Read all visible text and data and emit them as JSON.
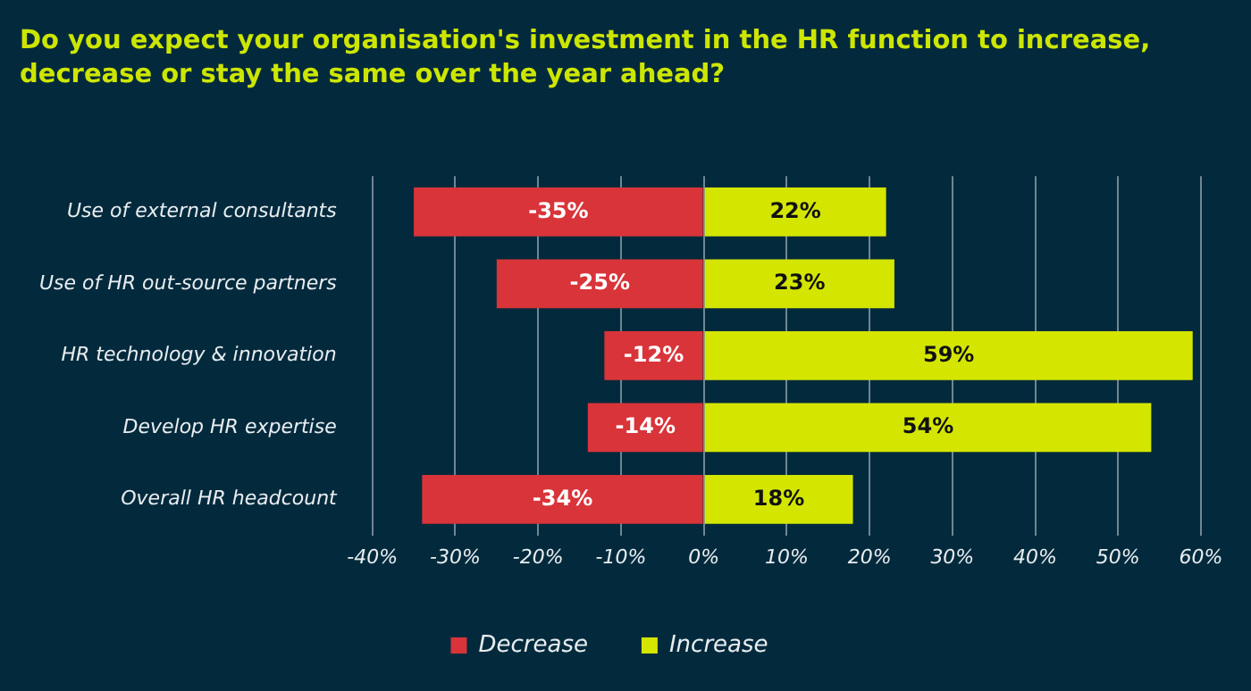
{
  "chart_data": {
    "type": "bar",
    "title": "Do you expect your organisation's investment in the HR function to increase, decrease or stay the same over the year ahead?",
    "orientation": "horizontal",
    "stacked": true,
    "categories": [
      "Use of external consultants",
      "Use of HR out-source partners",
      "HR technology & innovation",
      "Develop HR expertise",
      "Overall HR headcount"
    ],
    "series": [
      {
        "name": "Decrease",
        "color": "#d9343a",
        "values": [
          -35,
          -25,
          -12,
          -14,
          -34
        ],
        "value_labels": [
          "-35%",
          "-25%",
          "-12%",
          "-14%",
          "-34%"
        ]
      },
      {
        "name": "Increase",
        "color": "#d4e600",
        "values": [
          22,
          23,
          59,
          54,
          18
        ],
        "value_labels": [
          "22%",
          "23%",
          "59%",
          "54%",
          "18%"
        ]
      }
    ],
    "xlim": [
      -40,
      60
    ],
    "xticks": [
      {
        "value": -40,
        "label": "-40%"
      },
      {
        "value": -30,
        "label": "-30%"
      },
      {
        "value": -20,
        "label": "-20%"
      },
      {
        "value": -10,
        "label": "-10%"
      },
      {
        "value": 0,
        "label": "0%"
      },
      {
        "value": 10,
        "label": "10%"
      },
      {
        "value": 20,
        "label": "20%"
      },
      {
        "value": 30,
        "label": "30%"
      },
      {
        "value": 40,
        "label": "40%"
      },
      {
        "value": 50,
        "label": "50%"
      },
      {
        "value": 60,
        "label": "60%"
      }
    ],
    "grid": "x",
    "legend": "bottom"
  }
}
